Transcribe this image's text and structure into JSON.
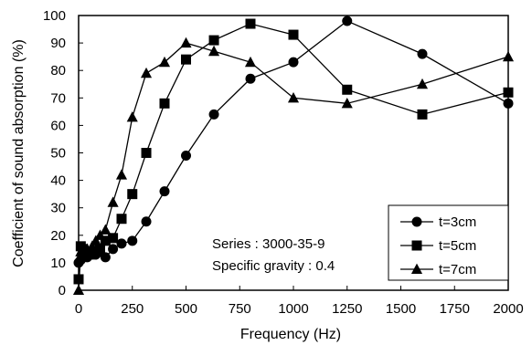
{
  "chart_data": {
    "type": "line",
    "xlabel": "Frequency (Hz)",
    "ylabel": "Coefficient of sound absorption (%)",
    "xlim": [
      0,
      2000
    ],
    "ylim": [
      0,
      100
    ],
    "xticks": [
      "0",
      "250",
      "500",
      "750",
      "1000",
      "1250",
      "1500",
      "1750",
      "2000"
    ],
    "yticks": [
      "0",
      "10",
      "20",
      "30",
      "40",
      "50",
      "60",
      "70",
      "80",
      "90",
      "100"
    ],
    "grid": false,
    "legend_position": "bottom-right",
    "annotations": [
      "Series : 3000-35-9",
      "Specific gravity : 0.4"
    ],
    "series": [
      {
        "name": "t=3cm",
        "marker": "circle",
        "x": [
          0,
          10,
          20,
          40,
          63,
          80,
          100,
          125,
          160,
          200,
          250,
          315,
          400,
          500,
          630,
          800,
          1000,
          1250,
          1600,
          2000
        ],
        "values": [
          10,
          11,
          12,
          12,
          13,
          13,
          14,
          12,
          15,
          17,
          18,
          25,
          36,
          49,
          64,
          77,
          83,
          98,
          86,
          68
        ]
      },
      {
        "name": "t=5cm",
        "marker": "square",
        "x": [
          0,
          10,
          20,
          40,
          63,
          80,
          100,
          125,
          160,
          200,
          250,
          315,
          400,
          500,
          630,
          800,
          1000,
          1250,
          1600,
          2000
        ],
        "values": [
          4,
          16,
          15,
          14,
          13,
          14,
          15,
          18,
          19,
          26,
          35,
          50,
          68,
          84,
          91,
          97,
          93,
          73,
          64,
          72
        ]
      },
      {
        "name": "t=7cm",
        "marker": "triangle",
        "x": [
          0,
          10,
          20,
          40,
          63,
          80,
          100,
          125,
          160,
          200,
          250,
          315,
          400,
          500,
          630,
          800,
          1000,
          1250,
          1600,
          2000
        ],
        "values": [
          0,
          14,
          14,
          15,
          16,
          18,
          20,
          22,
          32,
          42,
          63,
          79,
          83,
          90,
          87,
          83,
          70,
          68,
          75,
          85
        ]
      }
    ]
  }
}
